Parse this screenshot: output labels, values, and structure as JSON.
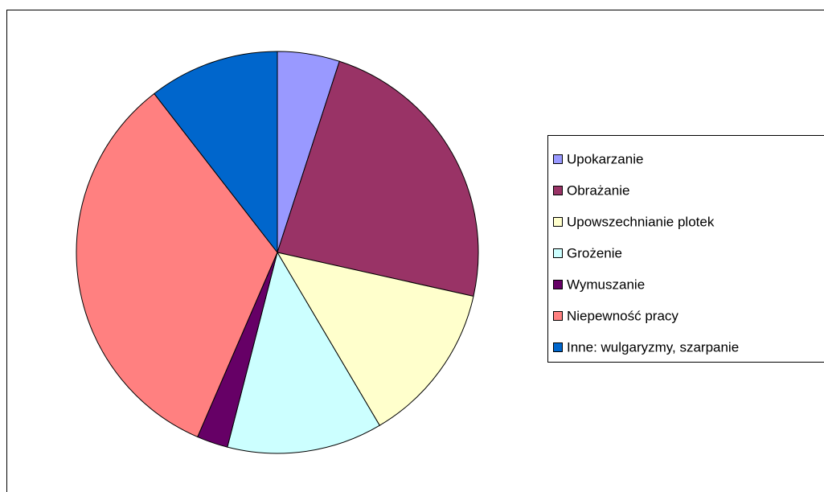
{
  "chart_data": {
    "type": "pie",
    "categories": [
      "Upokarzanie",
      "Obrażanie",
      "Upowszechnianie plotek",
      "Grożenie",
      "Wymuszanie",
      "Niepewność pracy",
      "Inne: wulgaryzmy, szarpanie"
    ],
    "values": [
      5,
      23.5,
      13,
      12.5,
      2.5,
      33,
      10.5
    ],
    "colors": [
      "#9999ff",
      "#993366",
      "#ffffcc",
      "#ccffff",
      "#660066",
      "#ff8080",
      "#0066cc"
    ],
    "legend": "right"
  }
}
